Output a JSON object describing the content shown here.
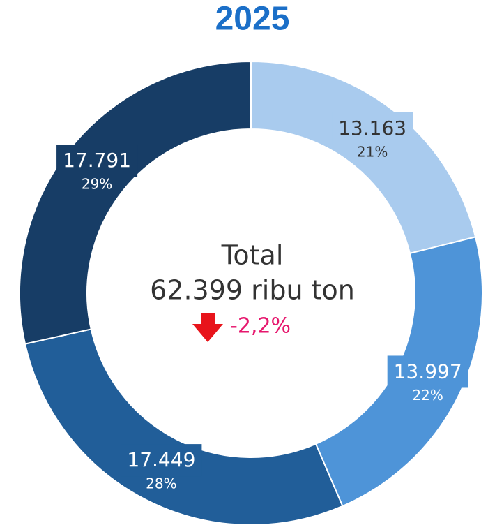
{
  "chart_data": {
    "type": "donut",
    "title": "2025",
    "categories": [
      null,
      null,
      null,
      null
    ],
    "values": [
      13163,
      13997,
      17449,
      17791
    ],
    "value_labels": [
      "13.163",
      "13.997",
      "17.449",
      "17.791"
    ],
    "percentages": [
      21,
      22,
      28,
      29
    ],
    "percentage_labels": [
      "21%",
      "22%",
      "28%",
      "29%"
    ],
    "colors": [
      "#a9cbee",
      "#4e94d8",
      "#215e99",
      "#173d66"
    ],
    "label_colors": [
      "#333333",
      "#ffffff",
      "#ffffff",
      "#ffffff"
    ],
    "center_text": [
      "Total",
      "62.399 ribu ton"
    ],
    "change": "-2,2%"
  }
}
